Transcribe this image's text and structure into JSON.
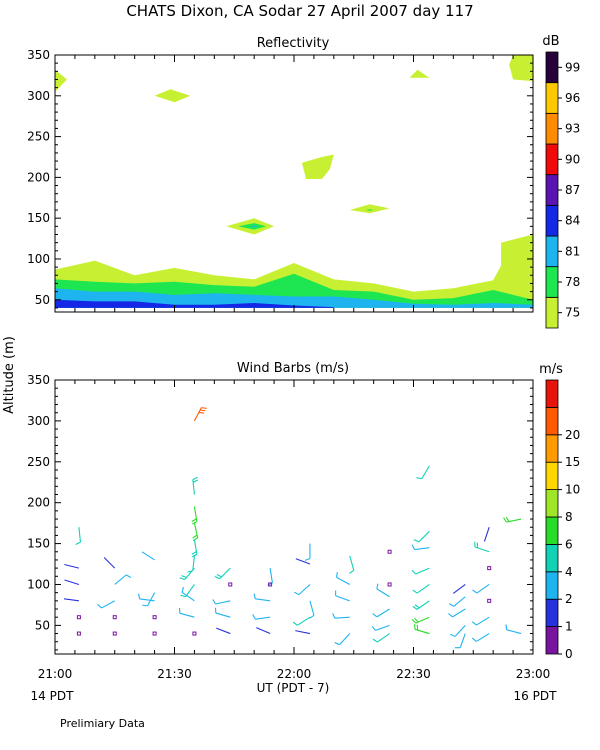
{
  "title": "CHATS Dixon, CA   Sodar   27 April 2007   day 117",
  "y_axis_label": "Altitude (m)",
  "x_axis_label": "UT  (PDT - 7)",
  "x_left_note": "14 PDT",
  "x_right_note": "16 PDT",
  "footnote": "Prelimiary Data",
  "chart_data": [
    {
      "type": "heatmap",
      "title": "Reflectivity",
      "colorbar_label": "dB",
      "x_ticks": [
        "21:00",
        "21:30",
        "22:00",
        "22:30",
        "23:00"
      ],
      "x_range": [
        0,
        120
      ],
      "y_ticks": [
        50,
        100,
        150,
        200,
        250,
        300,
        350
      ],
      "y_range": [
        35,
        350
      ],
      "levels": [
        75,
        78,
        81,
        84,
        87,
        90,
        93,
        96,
        99
      ],
      "colors": [
        "#c8f032",
        "#1ee650",
        "#1eb4f0",
        "#1428e6",
        "#5a14b4",
        "#f00a0a",
        "#ff8c00",
        "#ffc800",
        "#28003c"
      ],
      "layers": [
        {
          "level": 75,
          "points": [
            [
              0,
              87
            ],
            [
              10,
              98
            ],
            [
              20,
              80
            ],
            [
              30,
              89
            ],
            [
              40,
              80
            ],
            [
              50,
              75
            ],
            [
              60,
              95
            ],
            [
              70,
              75
            ],
            [
              80,
              70
            ],
            [
              90,
              60
            ],
            [
              100,
              64
            ],
            [
              110,
              74
            ],
            [
              112,
              92
            ],
            [
              112,
              120
            ],
            [
              120,
              130
            ],
            [
              120,
              40
            ],
            [
              0,
              40
            ]
          ]
        },
        {
          "level": 78,
          "points": [
            [
              0,
              75
            ],
            [
              10,
              72
            ],
            [
              20,
              70
            ],
            [
              30,
              72
            ],
            [
              40,
              68
            ],
            [
              50,
              66
            ],
            [
              60,
              82
            ],
            [
              70,
              62
            ],
            [
              80,
              60
            ],
            [
              90,
              50
            ],
            [
              100,
              52
            ],
            [
              110,
              62
            ],
            [
              120,
              50
            ],
            [
              120,
              40
            ],
            [
              0,
              40
            ]
          ]
        },
        {
          "level": 81,
          "points": [
            [
              0,
              64
            ],
            [
              10,
              60
            ],
            [
              20,
              60
            ],
            [
              30,
              56
            ],
            [
              40,
              58
            ],
            [
              50,
              56
            ],
            [
              60,
              54
            ],
            [
              70,
              54
            ],
            [
              80,
              50
            ],
            [
              90,
              45
            ],
            [
              100,
              44
            ],
            [
              110,
              46
            ],
            [
              120,
              44
            ],
            [
              120,
              40
            ],
            [
              0,
              40
            ]
          ]
        },
        {
          "level": 84,
          "points": [
            [
              0,
              50
            ],
            [
              10,
              48
            ],
            [
              20,
              48
            ],
            [
              30,
              44
            ],
            [
              40,
              44
            ],
            [
              50,
              46
            ],
            [
              60,
              43
            ],
            [
              70,
              41
            ],
            [
              70,
              40
            ],
            [
              0,
              40
            ]
          ]
        }
      ],
      "blobs": [
        {
          "level": 75,
          "points": [
            [
              0,
              305
            ],
            [
              3,
              320
            ],
            [
              0,
              332
            ]
          ]
        },
        {
          "level": 75,
          "points": [
            [
              25,
              300
            ],
            [
              30,
              292
            ],
            [
              34,
              300
            ],
            [
              29,
              308
            ]
          ]
        },
        {
          "level": 75,
          "points": [
            [
              67,
              225
            ],
            [
              70,
              228
            ],
            [
              69,
              210
            ],
            [
              67,
              198
            ],
            [
              63,
              198
            ],
            [
              62,
              218
            ]
          ]
        },
        {
          "level": 75,
          "points": [
            [
              43,
              140
            ],
            [
              50,
              150
            ],
            [
              55,
              140
            ],
            [
              50,
              130
            ]
          ]
        },
        {
          "level": 78,
          "points": [
            [
              46,
              140
            ],
            [
              50,
              144
            ],
            [
              53,
              140
            ],
            [
              50,
              136
            ]
          ]
        },
        {
          "level": 81,
          "points": [
            [
              49,
              140
            ],
            [
              50,
              141
            ],
            [
              51,
              140
            ],
            [
              50,
              139
            ]
          ]
        },
        {
          "level": 75,
          "points": [
            [
              74,
              160
            ],
            [
              79,
              167
            ],
            [
              84,
              162
            ],
            [
              79,
              156
            ]
          ]
        },
        {
          "level": 78,
          "points": [
            [
              78,
              160
            ],
            [
              79,
              161
            ],
            [
              80,
              160
            ],
            [
              79,
              159
            ]
          ]
        },
        {
          "level": 75,
          "points": [
            [
              89,
              322
            ],
            [
              91,
              332
            ],
            [
              94,
              322
            ]
          ]
        },
        {
          "level": 75,
          "points": [
            [
              115,
              320
            ],
            [
              114,
              338
            ],
            [
              115,
              350
            ],
            [
              120,
              350
            ],
            [
              120,
              318
            ]
          ]
        }
      ]
    },
    {
      "type": "scatter",
      "title": "Wind Barbs (m/s)",
      "colorbar_label": "m/s",
      "x_ticks": [
        "21:00",
        "21:30",
        "22:00",
        "22:30",
        "23:00"
      ],
      "x_range": [
        0,
        120
      ],
      "y_ticks": [
        50,
        100,
        150,
        200,
        250,
        300,
        350
      ],
      "y_range": [
        15,
        350
      ],
      "speed_levels": [
        0,
        1,
        2,
        4,
        6,
        8,
        10,
        15,
        20
      ],
      "colors": [
        "#7814a0",
        "#2832dc",
        "#1eb4f0",
        "#10d2b4",
        "#28dc28",
        "#a0e628",
        "#ffd700",
        "#ff9b00",
        "#ff5a00",
        "#e6140a"
      ],
      "barbs": [
        {
          "t": 6,
          "alt": 170,
          "u": 0.2,
          "v": -1.9,
          "speed": 4
        },
        {
          "t": 6,
          "alt": 120,
          "u": -1.6,
          "v": 0.4,
          "speed": 1
        },
        {
          "t": 6,
          "alt": 100,
          "u": -1.6,
          "v": 0.5,
          "speed": 1
        },
        {
          "t": 6,
          "alt": 80,
          "u": -1.5,
          "v": 0.2,
          "speed": 1
        },
        {
          "t": 6,
          "alt": 60,
          "speed": 0,
          "calm": true
        },
        {
          "t": 6,
          "alt": 40,
          "speed": 0,
          "calm": true
        },
        {
          "t": 15,
          "alt": 120,
          "u": -1.2,
          "v": 1.2,
          "speed": 1
        },
        {
          "t": 15,
          "alt": 100,
          "u": 1.2,
          "v": 1.0,
          "speed": 3
        },
        {
          "t": 15,
          "alt": 80,
          "u": -1.3,
          "v": -0.7,
          "speed": 3
        },
        {
          "t": 15,
          "alt": 60,
          "speed": 0,
          "calm": true
        },
        {
          "t": 15,
          "alt": 40,
          "speed": 0,
          "calm": true
        },
        {
          "t": 25,
          "alt": 130,
          "u": -1.4,
          "v": 0.9,
          "speed": 2
        },
        {
          "t": 25,
          "alt": 90,
          "u": -0.8,
          "v": -1.5,
          "speed": 3
        },
        {
          "t": 25,
          "alt": 80,
          "u": -1.6,
          "v": 0.2,
          "speed": 3
        },
        {
          "t": 25,
          "alt": 60,
          "speed": 0,
          "calm": true
        },
        {
          "t": 25,
          "alt": 40,
          "speed": 0,
          "calm": true
        },
        {
          "t": 35,
          "alt": 300,
          "u": 1.0,
          "v": 1.9,
          "speed": 20
        },
        {
          "t": 35,
          "alt": 210,
          "u": -0.2,
          "v": 1.9,
          "speed": 5
        },
        {
          "t": 35,
          "alt": 195,
          "u": 0.3,
          "v": -1.8,
          "speed": 7
        },
        {
          "t": 35,
          "alt": 175,
          "u": 0.4,
          "v": -1.8,
          "speed": 6
        },
        {
          "t": 35,
          "alt": 155,
          "u": 0.3,
          "v": -1.8,
          "speed": 5
        },
        {
          "t": 35,
          "alt": 135,
          "u": -0.2,
          "v": -1.8,
          "speed": 4
        },
        {
          "t": 35,
          "alt": 120,
          "u": -1.1,
          "v": -1.3,
          "speed": 5
        },
        {
          "t": 35,
          "alt": 100,
          "u": -1.0,
          "v": -1.4,
          "speed": 4
        },
        {
          "t": 35,
          "alt": 80,
          "u": -1.3,
          "v": 0.9,
          "speed": 3
        },
        {
          "t": 35,
          "alt": 60,
          "u": -1.5,
          "v": 0.4,
          "speed": 3
        },
        {
          "t": 35,
          "alt": 40,
          "speed": 0,
          "calm": true
        },
        {
          "t": 44,
          "alt": 120,
          "u": -1.2,
          "v": -1.2,
          "speed": 5
        },
        {
          "t": 44,
          "alt": 100,
          "speed": 0,
          "calm": true
        },
        {
          "t": 44,
          "alt": 80,
          "u": -1.4,
          "v": -0.3,
          "speed": 3
        },
        {
          "t": 44,
          "alt": 60,
          "u": -1.4,
          "v": 0.4,
          "speed": 3
        },
        {
          "t": 44,
          "alt": 40,
          "u": -1.3,
          "v": 0.5,
          "speed": 1
        },
        {
          "t": 54,
          "alt": 120,
          "u": 0.3,
          "v": -1.9,
          "speed": 3
        },
        {
          "t": 54,
          "alt": 100,
          "speed": 0,
          "calm": true
        },
        {
          "t": 54,
          "alt": 80,
          "u": -1.5,
          "v": 0.2,
          "speed": 3
        },
        {
          "t": 54,
          "alt": 60,
          "u": -1.5,
          "v": -0.2,
          "speed": 3
        },
        {
          "t": 54,
          "alt": 40,
          "u": -1.4,
          "v": 0.6,
          "speed": 1
        },
        {
          "t": 64,
          "alt": 150,
          "u": 0.0,
          "v": -1.8,
          "speed": 3
        },
        {
          "t": 64,
          "alt": 125,
          "u": -1.6,
          "v": 0.6,
          "speed": 1
        },
        {
          "t": 64,
          "alt": 100,
          "u": -1.3,
          "v": -1.2,
          "speed": 3
        },
        {
          "t": 64,
          "alt": 80,
          "u": 0.5,
          "v": -1.8,
          "speed": 3
        },
        {
          "t": 64,
          "alt": 60,
          "u": -1.4,
          "v": -0.9,
          "speed": 4
        },
        {
          "t": 64,
          "alt": 40,
          "u": -1.5,
          "v": 0.3,
          "speed": 1
        },
        {
          "t": 74,
          "alt": 135,
          "u": 0.5,
          "v": -1.8,
          "speed": 4
        },
        {
          "t": 74,
          "alt": 100,
          "u": -1.3,
          "v": 0.7,
          "speed": 3
        },
        {
          "t": 74,
          "alt": 80,
          "u": -1.4,
          "v": 0.5,
          "speed": 3
        },
        {
          "t": 74,
          "alt": 60,
          "u": -1.5,
          "v": -0.1,
          "speed": 3
        },
        {
          "t": 74,
          "alt": 40,
          "u": -1.1,
          "v": -1.2,
          "speed": 3
        },
        {
          "t": 84,
          "alt": 140,
          "speed": 0,
          "calm": true
        },
        {
          "t": 84,
          "alt": 100,
          "speed": 0,
          "calm": true
        },
        {
          "t": 84,
          "alt": 85,
          "u": -1.3,
          "v": 0.8,
          "speed": 3
        },
        {
          "t": 84,
          "alt": 70,
          "u": -1.3,
          "v": -0.8,
          "speed": 3
        },
        {
          "t": 84,
          "alt": 50,
          "u": -1.4,
          "v": -0.5,
          "speed": 3
        },
        {
          "t": 84,
          "alt": 40,
          "u": -1.3,
          "v": -0.9,
          "speed": 4
        },
        {
          "t": 94,
          "alt": 245,
          "u": -0.9,
          "v": -1.5,
          "speed": 4
        },
        {
          "t": 94,
          "alt": 165,
          "u": -1.2,
          "v": -1.2,
          "speed": 4
        },
        {
          "t": 94,
          "alt": 145,
          "u": -1.6,
          "v": -0.2,
          "speed": 3
        },
        {
          "t": 94,
          "alt": 120,
          "u": -1.4,
          "v": -0.6,
          "speed": 4
        },
        {
          "t": 94,
          "alt": 100,
          "u": -1.3,
          "v": -0.9,
          "speed": 4
        },
        {
          "t": 94,
          "alt": 80,
          "u": -1.3,
          "v": -0.9,
          "speed": 5
        },
        {
          "t": 94,
          "alt": 60,
          "u": -1.4,
          "v": -0.6,
          "speed": 6
        },
        {
          "t": 94,
          "alt": 40,
          "u": -1.4,
          "v": 0.4,
          "speed": 6
        },
        {
          "t": 103,
          "alt": 100,
          "u": -1.2,
          "v": -0.9,
          "speed": 1
        },
        {
          "t": 103,
          "alt": 85,
          "u": -1.2,
          "v": -1.0,
          "speed": 3
        },
        {
          "t": 103,
          "alt": 70,
          "u": -1.3,
          "v": -0.8,
          "speed": 3
        },
        {
          "t": 103,
          "alt": 50,
          "u": -1.2,
          "v": -1.3,
          "speed": 3
        },
        {
          "t": 103,
          "alt": 40,
          "u": -0.5,
          "v": -1.4,
          "speed": 3
        },
        {
          "t": 109,
          "alt": 170,
          "u": -0.6,
          "v": -1.8,
          "speed": 1
        },
        {
          "t": 109,
          "alt": 140,
          "u": -1.5,
          "v": 0.5,
          "speed": 5
        },
        {
          "t": 109,
          "alt": 120,
          "speed": 0,
          "calm": true
        },
        {
          "t": 109,
          "alt": 100,
          "u": -1.3,
          "v": -0.9,
          "speed": 3
        },
        {
          "t": 109,
          "alt": 80,
          "speed": 0,
          "calm": true
        },
        {
          "t": 109,
          "alt": 60,
          "u": -1.3,
          "v": -0.8,
          "speed": 3
        },
        {
          "t": 109,
          "alt": 40,
          "u": -1.3,
          "v": -0.8,
          "speed": 3
        },
        {
          "t": 117,
          "alt": 180,
          "u": -1.9,
          "v": -0.4,
          "speed": 6
        },
        {
          "t": 117,
          "alt": 40,
          "u": -1.5,
          "v": 0.4,
          "speed": 3
        }
      ]
    }
  ]
}
